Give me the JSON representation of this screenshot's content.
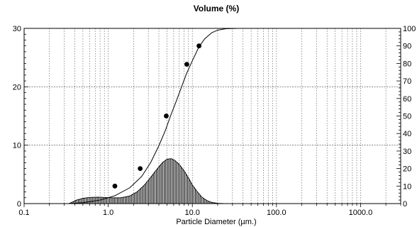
{
  "chart_data": {
    "type": "line",
    "title": "Volume (%)",
    "xlabel": "Particle Diameter (µm.)",
    "x_scale": "log",
    "xlim": [
      0.1,
      3000
    ],
    "x_ticks": [
      0.1,
      1.0,
      10.0,
      100.0,
      1000.0
    ],
    "x_tick_labels": [
      "0.1",
      "1.0",
      "10.0",
      "100.0",
      "1000.0"
    ],
    "left_ylim": [
      0,
      30
    ],
    "left_y_ticks": [
      0,
      10,
      20,
      30
    ],
    "left_y_tick_labels": [
      "0",
      "10",
      "20",
      "30"
    ],
    "right_ylim": [
      0,
      100
    ],
    "right_y_ticks": [
      0,
      10,
      20,
      30,
      40,
      50,
      60,
      70,
      80,
      90,
      100
    ],
    "right_y_tick_labels": [
      "0",
      "10",
      "20",
      "30",
      "40",
      "50",
      "60",
      "70",
      "80",
      "90",
      "100"
    ],
    "grid": true,
    "series": [
      {
        "kind": "area",
        "axis": "left",
        "fill": "hatched",
        "x": [
          0.34,
          0.38,
          0.42,
          0.5,
          0.6,
          0.75,
          0.9,
          1.1,
          1.4,
          1.8,
          2.2,
          2.7,
          3.2,
          3.8,
          4.4,
          5.0,
          5.6,
          6.2,
          7.0,
          8.0,
          9.0,
          10.0,
          11.5,
          13.0,
          15.0,
          17.0,
          20.0,
          24.0,
          28.0
        ],
        "y": [
          0,
          0.3,
          0.6,
          0.9,
          1.05,
          1.1,
          1.05,
          1.0,
          1.0,
          1.3,
          2.0,
          3.2,
          4.5,
          5.9,
          7.0,
          7.6,
          7.7,
          7.4,
          6.7,
          5.6,
          4.4,
          3.2,
          2.0,
          1.1,
          0.5,
          0.2,
          0.05,
          0,
          0
        ]
      },
      {
        "kind": "line",
        "axis": "right",
        "x": [
          0.34,
          0.5,
          0.8,
          1.2,
          1.8,
          2.5,
          3.2,
          4.0,
          4.8,
          5.5,
          6.5,
          7.5,
          8.5,
          10.0,
          12.0,
          14.0,
          17.0,
          20.0,
          25.0,
          35.0,
          60.0,
          120.0,
          300.0,
          1000.0,
          3000.0
        ],
        "y": [
          0,
          0.5,
          2.0,
          4.5,
          9.0,
          15.5,
          23.5,
          33.0,
          42.0,
          50.0,
          59.0,
          67.0,
          74.0,
          81.5,
          89.5,
          94.0,
          97.5,
          99.0,
          99.8,
          100,
          100,
          100,
          100,
          100,
          100
        ]
      },
      {
        "kind": "markers",
        "axis": "right",
        "x": [
          1.2,
          2.4,
          4.9,
          8.6,
          12.0
        ],
        "y": [
          10.0,
          20.0,
          50.0,
          79.5,
          90.0
        ]
      }
    ]
  }
}
